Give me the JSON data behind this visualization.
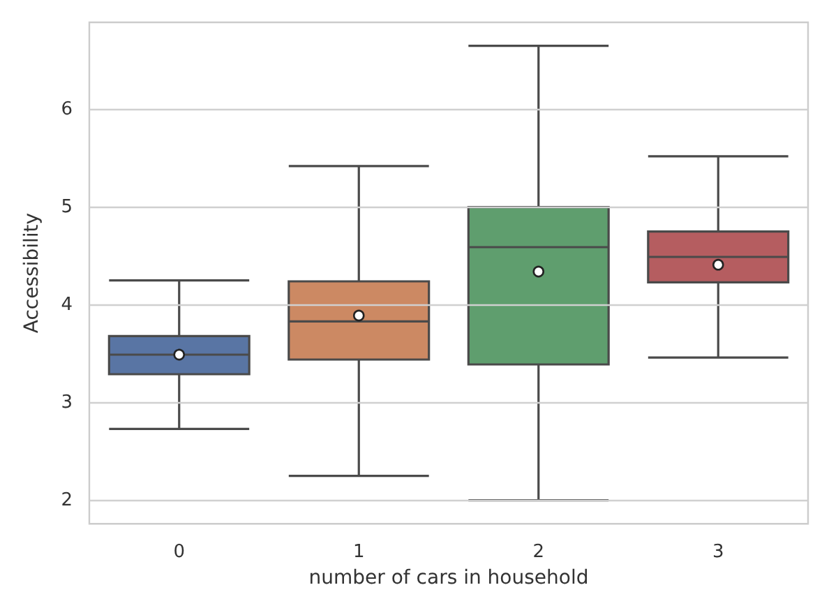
{
  "chart_data": {
    "type": "box",
    "xlabel": "number of cars in household",
    "ylabel": "Accessibility",
    "categories": [
      "0",
      "1",
      "2",
      "3"
    ],
    "colors": [
      "#5975a4",
      "#cc8963",
      "#5f9e6e",
      "#b55d60"
    ],
    "boxes": [
      {
        "low": 2.73,
        "q1": 3.29,
        "median": 3.49,
        "q3": 3.68,
        "high": 4.25,
        "mean": 3.49
      },
      {
        "low": 2.25,
        "q1": 3.44,
        "median": 3.83,
        "q3": 4.24,
        "high": 5.42,
        "mean": 3.89
      },
      {
        "low": 2.0,
        "q1": 3.39,
        "median": 4.59,
        "q3": 5.0,
        "high": 6.65,
        "mean": 4.34
      },
      {
        "low": 3.46,
        "q1": 4.23,
        "median": 4.49,
        "q3": 4.75,
        "high": 5.52,
        "mean": 4.41
      }
    ],
    "ylim": [
      1.76,
      6.89
    ],
    "yticks": [
      2,
      3,
      4,
      5,
      6
    ],
    "grid": "y"
  }
}
